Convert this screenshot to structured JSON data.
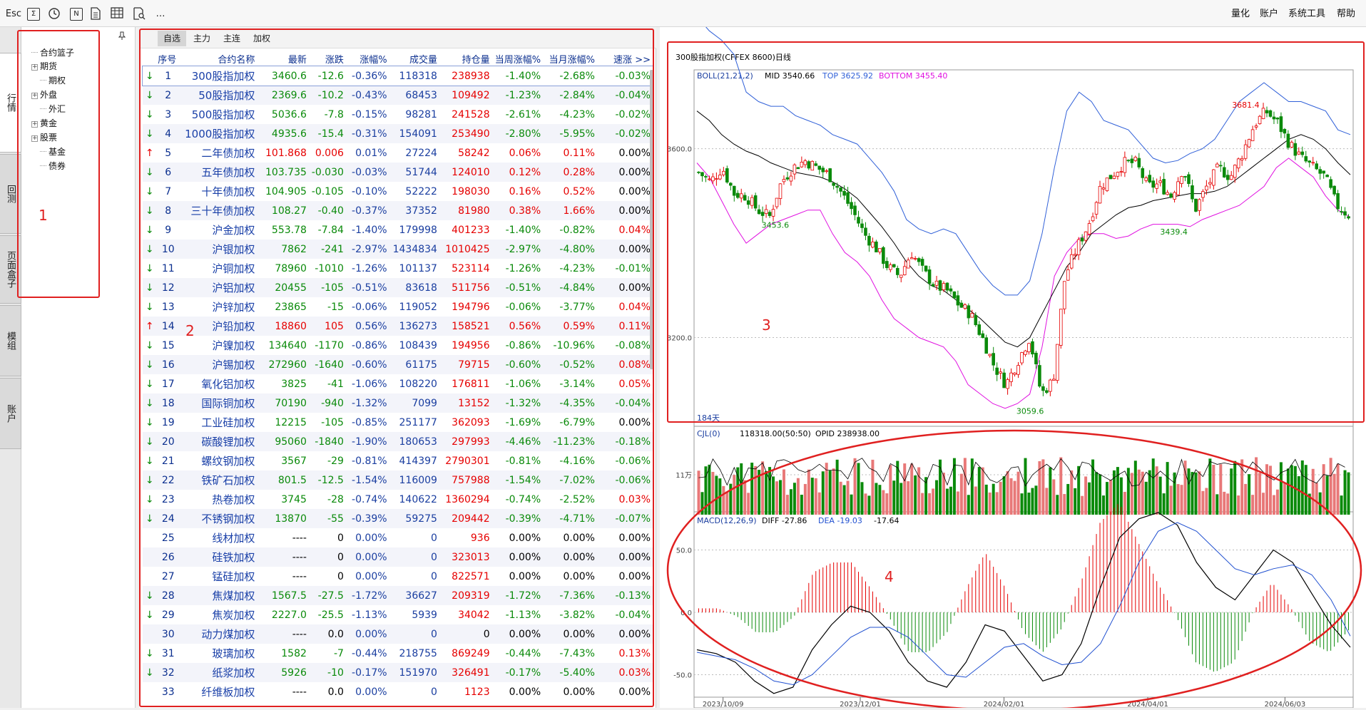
{
  "toolbar": {
    "esc": "Esc",
    "sigma": "Σ",
    "n": "N",
    "more": "…",
    "right": [
      "量化",
      "账户",
      "系统工具",
      "帮助"
    ]
  },
  "vtabs": [
    "行情",
    "回测",
    "页面盒子",
    "模组",
    "账户"
  ],
  "tree": {
    "root": "合约篮子",
    "items": [
      {
        "label": "期货",
        "expandable": true
      },
      {
        "label": "期权",
        "expandable": false
      },
      {
        "label": "外盘",
        "expandable": true
      },
      {
        "label": "外汇",
        "expandable": false
      },
      {
        "label": "黄金",
        "expandable": true
      },
      {
        "label": "股票",
        "expandable": true
      },
      {
        "label": "基金",
        "expandable": false
      },
      {
        "label": "债券",
        "expandable": false
      }
    ]
  },
  "subtabs": [
    "自选",
    "主力",
    "主连",
    "加权"
  ],
  "table": {
    "columns": [
      "序号",
      "合约名称",
      "最新",
      "涨跌",
      "涨幅%",
      "成交量",
      "持仓量",
      "当周涨幅%",
      "当月涨幅%",
      "速涨",
      ">>"
    ],
    "rows": [
      [
        "↓",
        "1",
        "300股指加权",
        "3460.6",
        "-12.6",
        "-0.36%",
        "118318",
        "238938",
        "-1.40%",
        "-2.68%",
        "-0.03%"
      ],
      [
        "↓",
        "2",
        "50股指加权",
        "2369.6",
        "-10.2",
        "-0.43%",
        "68453",
        "109492",
        "-1.23%",
        "-2.84%",
        "-0.04%"
      ],
      [
        "↓",
        "3",
        "500股指加权",
        "5036.6",
        "-7.8",
        "-0.15%",
        "98281",
        "241528",
        "-2.61%",
        "-4.23%",
        "-0.02%"
      ],
      [
        "↓",
        "4",
        "1000股指加权",
        "4935.6",
        "-15.4",
        "-0.31%",
        "154091",
        "253490",
        "-2.80%",
        "-5.95%",
        "-0.02%"
      ],
      [
        "↑",
        "5",
        "二年债加权",
        "101.868",
        "0.006",
        "0.01%",
        "27224",
        "58242",
        "0.06%",
        "0.11%",
        "0.00%"
      ],
      [
        "↓",
        "6",
        "五年债加权",
        "103.735",
        "-0.030",
        "-0.03%",
        "51744",
        "124010",
        "0.12%",
        "0.28%",
        "0.00%"
      ],
      [
        "↓",
        "7",
        "十年债加权",
        "104.905",
        "-0.105",
        "-0.10%",
        "52222",
        "198030",
        "0.16%",
        "0.52%",
        "0.00%"
      ],
      [
        "↓",
        "8",
        "三十年债加权",
        "108.27",
        "-0.40",
        "-0.37%",
        "37352",
        "81980",
        "0.38%",
        "1.66%",
        "0.00%"
      ],
      [
        "↓",
        "9",
        "沪金加权",
        "553.78",
        "-7.84",
        "-1.40%",
        "179998",
        "401233",
        "-1.40%",
        "-0.82%",
        "0.04%"
      ],
      [
        "↓",
        "10",
        "沪银加权",
        "7862",
        "-241",
        "-2.97%",
        "1434834",
        "1010425",
        "-2.97%",
        "-4.80%",
        "0.00%"
      ],
      [
        "↓",
        "11",
        "沪铜加权",
        "78960",
        "-1010",
        "-1.26%",
        "101137",
        "523114",
        "-1.26%",
        "-4.23%",
        "-0.01%"
      ],
      [
        "↓",
        "12",
        "沪铝加权",
        "20455",
        "-105",
        "-0.51%",
        "83618",
        "511756",
        "-0.51%",
        "-4.84%",
        "0.00%"
      ],
      [
        "↓",
        "13",
        "沪锌加权",
        "23865",
        "-15",
        "-0.06%",
        "119052",
        "194796",
        "-0.06%",
        "-3.77%",
        "0.04%"
      ],
      [
        "↑",
        "14",
        "沪铅加权",
        "18860",
        "105",
        "0.56%",
        "136273",
        "158521",
        "0.56%",
        "0.59%",
        "0.11%"
      ],
      [
        "↓",
        "15",
        "沪镍加权",
        "134640",
        "-1170",
        "-0.86%",
        "108439",
        "194956",
        "-0.86%",
        "-10.96%",
        "-0.08%"
      ],
      [
        "↓",
        "16",
        "沪锡加权",
        "272960",
        "-1640",
        "-0.60%",
        "61175",
        "79715",
        "-0.60%",
        "-0.52%",
        "0.08%"
      ],
      [
        "↓",
        "17",
        "氧化铝加权",
        "3825",
        "-41",
        "-1.06%",
        "108220",
        "176811",
        "-1.06%",
        "-3.14%",
        "0.05%"
      ],
      [
        "↓",
        "18",
        "国际铜加权",
        "70190",
        "-940",
        "-1.32%",
        "7099",
        "13152",
        "-1.32%",
        "-4.35%",
        "-0.04%"
      ],
      [
        "↓",
        "19",
        "工业硅加权",
        "12215",
        "-105",
        "-0.85%",
        "251177",
        "362093",
        "-1.69%",
        "-6.79%",
        "0.00%"
      ],
      [
        "↓",
        "20",
        "碳酸锂加权",
        "95060",
        "-1840",
        "-1.90%",
        "180653",
        "297993",
        "-4.46%",
        "-11.23%",
        "-0.18%"
      ],
      [
        "↓",
        "21",
        "螺纹钢加权",
        "3567",
        "-29",
        "-0.81%",
        "414397",
        "2790301",
        "-0.81%",
        "-4.16%",
        "-0.06%"
      ],
      [
        "↓",
        "22",
        "铁矿石加权",
        "801.5",
        "-12.5",
        "-1.54%",
        "116009",
        "757988",
        "-1.54%",
        "-7.02%",
        "-0.06%"
      ],
      [
        "↓",
        "23",
        "热卷加权",
        "3745",
        "-28",
        "-0.74%",
        "140622",
        "1360294",
        "-0.74%",
        "-2.52%",
        "0.03%"
      ],
      [
        "↓",
        "24",
        "不锈钢加权",
        "13870",
        "-55",
        "-0.39%",
        "59275",
        "209442",
        "-0.39%",
        "-4.71%",
        "-0.07%"
      ],
      [
        "",
        "25",
        "线材加权",
        "----",
        "0",
        "0.00%",
        "0",
        "936",
        "0.00%",
        "0.00%",
        "0.00%"
      ],
      [
        "",
        "26",
        "硅铁加权",
        "----",
        "0",
        "0.00%",
        "0",
        "323013",
        "0.00%",
        "0.00%",
        "0.00%"
      ],
      [
        "",
        "27",
        "锰硅加权",
        "----",
        "0",
        "0.00%",
        "0",
        "822571",
        "0.00%",
        "0.00%",
        "0.00%"
      ],
      [
        "↓",
        "28",
        "焦煤加权",
        "1567.5",
        "-27.5",
        "-1.72%",
        "36627",
        "209319",
        "-1.72%",
        "-7.36%",
        "-0.13%"
      ],
      [
        "↓",
        "29",
        "焦炭加权",
        "2227.0",
        "-25.5",
        "-1.13%",
        "5939",
        "34042",
        "-1.13%",
        "-3.82%",
        "-0.04%"
      ],
      [
        "",
        "30",
        "动力煤加权",
        "----",
        "0.0",
        "0.00%",
        "0",
        "0",
        "0.00%",
        "0.00%",
        "0.00%"
      ],
      [
        "↓",
        "31",
        "玻璃加权",
        "1582",
        "-7",
        "-0.44%",
        "218755",
        "869249",
        "-0.44%",
        "-7.43%",
        "0.13%"
      ],
      [
        "↓",
        "32",
        "纸浆加权",
        "5926",
        "-10",
        "-0.17%",
        "151970",
        "326491",
        "-0.17%",
        "-5.40%",
        "0.03%"
      ],
      [
        "",
        "33",
        "纤维板加权",
        "----",
        "0.0",
        "0.00%",
        "0",
        "1123",
        "0.00%",
        "0.00%",
        "0.00%"
      ]
    ]
  },
  "chart": {
    "title": "300股指加权(CFFEX 8600)日线",
    "boll": {
      "label": "BOLL(21,21,2)",
      "mid": "MID 3540.66",
      "top": "TOP 3625.92",
      "bottom": "BOTTOM 3455.40"
    },
    "price_ticks": [
      {
        "v": 3600,
        "label": "3600.0"
      },
      {
        "v": 3200,
        "label": "3200.0"
      }
    ],
    "annotations": {
      "high": "3681.4",
      "low": "3059.6",
      "local_low_1": "3453.6",
      "local_low_2": "3439.4"
    },
    "days": "184天",
    "volume": {
      "label": "CJL(0)",
      "value": "118318.00(50:50)",
      "opid": "OPID 238938.00",
      "tick": "11万"
    },
    "macd": {
      "label": "MACD(12,26,9)",
      "diff": "DIFF -27.86",
      "dea": "DEA -19.03",
      "macd": "-17.64"
    },
    "macd_ticks": [
      {
        "v": 50,
        "label": "50.0"
      },
      {
        "v": 0,
        "label": "0.0"
      },
      {
        "v": -50,
        "label": "-50.0"
      }
    ],
    "dates": [
      "2023/10/09",
      "2023/12/01",
      "2024/02/01",
      "2024/04/01",
      "2024/06/03"
    ]
  },
  "colors": {
    "up": "#e60000",
    "down": "#0a8a0a",
    "annotation": "#e02020",
    "boll_top": "#3060d8",
    "boll_bottom": "#e010e0",
    "dea": "#2050d0"
  },
  "annotation_numbers": [
    "1",
    "2",
    "3",
    "4"
  ],
  "chart_data": {
    "type": "candlestick",
    "title": "300股指加权(CFFEX 8600)日线",
    "close_path": [
      3550,
      3530,
      3560,
      3505,
      3500,
      3470,
      3456,
      3530,
      3560,
      3575,
      3560,
      3545,
      3510,
      3470,
      3420,
      3390,
      3350,
      3330,
      3380,
      3340,
      3310,
      3300,
      3270,
      3250,
      3200,
      3140,
      3100,
      3150,
      3200,
      3080,
      3110,
      3330,
      3390,
      3440,
      3520,
      3545,
      3570,
      3570,
      3520,
      3525,
      3500,
      3560,
      3470,
      3520,
      3560,
      3540,
      3590,
      3650,
      3680,
      3655,
      3610,
      3580,
      3560,
      3540,
      3480,
      3460
    ],
    "boll_mid_path": [
      3680,
      3660,
      3630,
      3610,
      3595,
      3585,
      3570,
      3560,
      3550,
      3545,
      3540,
      3530,
      3515,
      3495,
      3465,
      3435,
      3400,
      3360,
      3330,
      3310,
      3300,
      3280,
      3260,
      3240,
      3215,
      3190,
      3180,
      3200,
      3250,
      3300,
      3350,
      3380,
      3420,
      3440,
      3460,
      3475,
      3480,
      3490,
      3495,
      3500,
      3505,
      3505,
      3510,
      3520,
      3540,
      3560,
      3580,
      3600,
      3620,
      3630,
      3620,
      3600,
      3570,
      3545
    ],
    "boll_top_path": [
      3880,
      3850,
      3830,
      3800,
      3720,
      3700,
      3690,
      3690,
      3670,
      3660,
      3650,
      3630,
      3620,
      3610,
      3580,
      3550,
      3510,
      3450,
      3430,
      3420,
      3430,
      3420,
      3380,
      3340,
      3310,
      3290,
      3290,
      3320,
      3420,
      3560,
      3680,
      3720,
      3700,
      3660,
      3650,
      3640,
      3610,
      3580,
      3570,
      3575,
      3590,
      3600,
      3620,
      3660,
      3700,
      3720,
      3740,
      3720,
      3700,
      3700,
      3690,
      3680,
      3640,
      3630
    ],
    "boll_bottom_path": [
      3570,
      3540,
      3490,
      3440,
      3400,
      3420,
      3440,
      3450,
      3460,
      3470,
      3470,
      3420,
      3380,
      3360,
      3330,
      3280,
      3240,
      3220,
      3200,
      3190,
      3180,
      3150,
      3100,
      3080,
      3060,
      3050,
      3060,
      3080,
      3180,
      3330,
      3380,
      3410,
      3420,
      3420,
      3410,
      3415,
      3430,
      3440,
      3440,
      3440,
      3435,
      3450,
      3460,
      3470,
      3480,
      3500,
      3520,
      3560,
      3580,
      3560,
      3540,
      3500,
      3470,
      3455
    ],
    "macd_diff_path": [
      -30,
      -33,
      -40,
      -55,
      -65,
      -60,
      -30,
      -10,
      5,
      0,
      -15,
      -40,
      -55,
      -60,
      -40,
      -10,
      -15,
      -35,
      -55,
      -50,
      -25,
      20,
      60,
      75,
      80,
      70,
      40,
      20,
      10,
      30,
      50,
      40,
      15,
      -10,
      -28
    ],
    "macd_dea_path": [
      -32,
      -35,
      -38,
      -45,
      -55,
      -58,
      -50,
      -35,
      -20,
      -12,
      -12,
      -20,
      -35,
      -50,
      -52,
      -40,
      -28,
      -25,
      -35,
      -42,
      -40,
      -25,
      5,
      40,
      65,
      72,
      65,
      50,
      35,
      30,
      35,
      38,
      30,
      10,
      -19
    ],
    "xlabels": [
      "2023/10/09",
      "2023/12/01",
      "2024/02/01",
      "2024/04/01",
      "2024/06/03"
    ],
    "ylim": [
      3030,
      3740
    ],
    "yticks": [
      3600,
      3200
    ],
    "macd_ylim": [
      -68,
      68
    ],
    "latest": {
      "close": 3460.6,
      "boll_mid": 3540.66,
      "boll_top": 3625.92,
      "boll_bottom": 3455.4,
      "volume": 118318,
      "opid": 238938,
      "diff": -27.86,
      "dea": -19.03,
      "macd": -17.64
    }
  }
}
